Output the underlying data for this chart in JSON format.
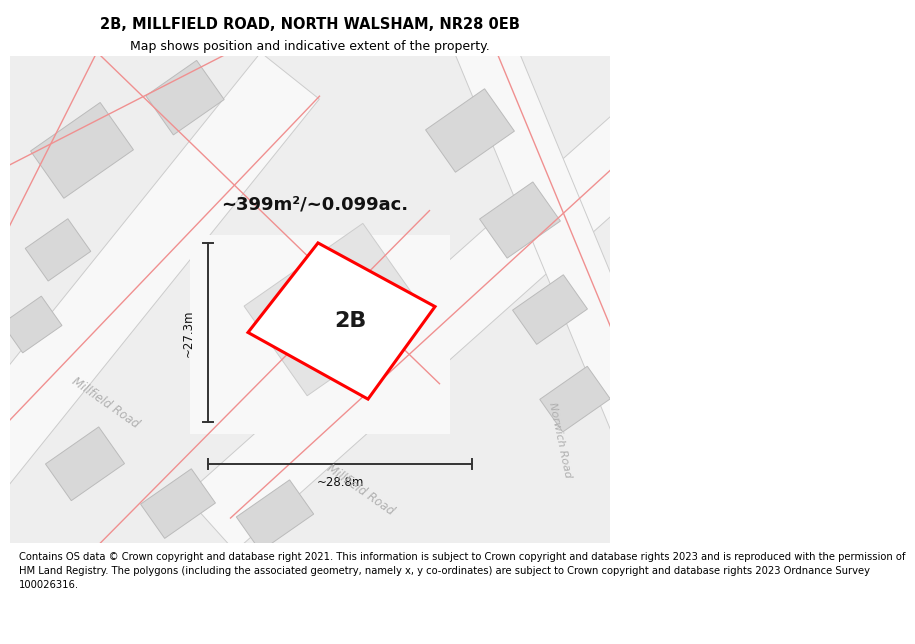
{
  "title": "2B, MILLFIELD ROAD, NORTH WALSHAM, NR28 0EB",
  "subtitle": "Map shows position and indicative extent of the property.",
  "footer_line1": "Contains OS data © Crown copyright and database right 2021. This information is subject to Crown copyright and database rights 2023 and is reproduced with the permission of",
  "footer_line2": "HM Land Registry. The polygons (including the associated geometry, namely x, y co-ordinates) are subject to Crown copyright and database rights 2023 Ordnance Survey",
  "footer_line3": "100026316.",
  "area_text": "~399m²/~0.099ac.",
  "label_2b": "2B",
  "dim_height": "~27.3m",
  "dim_width": "~28.8m",
  "road_label1": "Millfield Road",
  "road_label2": "Millfield Road",
  "road_label3": "Norwich Road",
  "bg_color": "#f5f5f5",
  "map_bg": "#f0f0f0",
  "property_fill": "#ffffff",
  "property_edge": "#ff0000",
  "building_fill": "#d8d8d8",
  "building_edge": "#bbbbbb",
  "road_fill": "#ffffff",
  "road_edge": "#cccccc",
  "road_line_color": "#f5aaaa",
  "dim_line_color": "#333333",
  "title_fontsize": 10.5,
  "subtitle_fontsize": 9,
  "footer_fontsize": 7.2
}
